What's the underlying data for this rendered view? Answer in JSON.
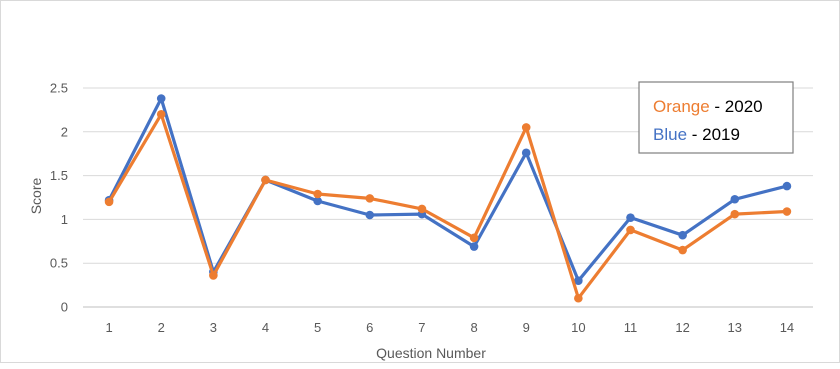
{
  "chart_data": {
    "type": "line",
    "title": "",
    "xlabel": "Question Number",
    "ylabel": "Score",
    "categories": [
      "1",
      "2",
      "3",
      "4",
      "5",
      "6",
      "7",
      "8",
      "9",
      "10",
      "11",
      "12",
      "13",
      "14"
    ],
    "ylim": [
      0,
      2.5
    ],
    "yticks": [
      "0",
      "0.5",
      "1",
      "1.5",
      "2",
      "2.5"
    ],
    "grid": "horizontal",
    "legend_position": "top-right",
    "series": [
      {
        "key": "blue",
        "color": "#4472c4",
        "values": [
          1.22,
          2.38,
          0.4,
          1.45,
          1.21,
          1.05,
          1.06,
          0.69,
          1.76,
          0.3,
          1.02,
          0.82,
          1.23,
          1.38
        ]
      },
      {
        "key": "orange",
        "color": "#ed7d31",
        "values": [
          1.2,
          2.2,
          0.36,
          1.45,
          1.29,
          1.24,
          1.12,
          0.79,
          2.05,
          0.1,
          0.88,
          0.65,
          1.06,
          1.09
        ]
      }
    ],
    "legend": {
      "orange_word": "Orange",
      "orange_rest": " - 2020",
      "blue_word": "Blue",
      "blue_rest": " - 2019"
    }
  }
}
